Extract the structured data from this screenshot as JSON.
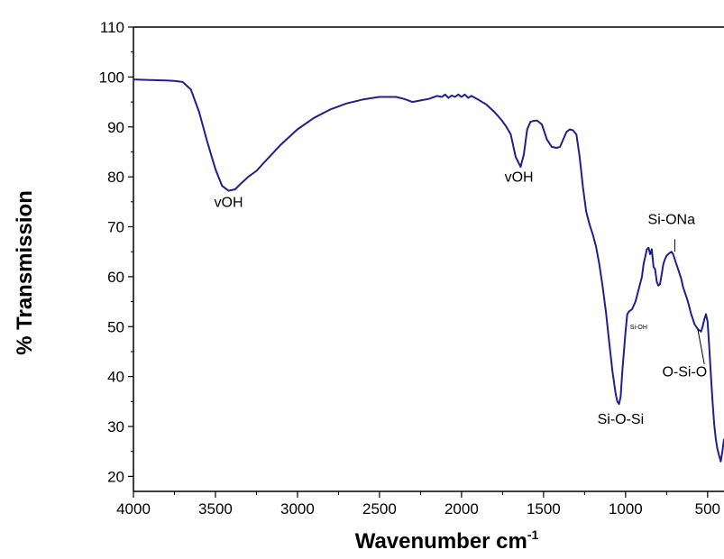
{
  "chart_data": {
    "type": "line",
    "xlabel": "Wavenumber cm",
    "xlabel_sup": "-1",
    "ylabel": "% Transmission",
    "xlim": [
      4000,
      400
    ],
    "ylim": [
      17,
      110
    ],
    "x_ticks": [
      4000,
      3500,
      3000,
      2500,
      2000,
      1500,
      1000,
      500
    ],
    "x_tick_labels": [
      "4000",
      "3500",
      "3000",
      "2500",
      "2000",
      "1500",
      "1000",
      "500"
    ],
    "y_ticks": [
      20,
      30,
      40,
      50,
      60,
      70,
      80,
      90,
      100,
      110
    ],
    "y_tick_labels": [
      "20",
      "30",
      "40",
      "50",
      "60",
      "70",
      "80",
      "90",
      "100",
      "110"
    ],
    "grid": false,
    "line_color": "#1f1f8f",
    "series": [
      {
        "x": [
          4000,
          3900,
          3800,
          3750,
          3700,
          3650,
          3600,
          3550,
          3500,
          3460,
          3420,
          3380,
          3350,
          3300,
          3250,
          3200,
          3100,
          3000,
          2900,
          2800,
          2700,
          2600,
          2500,
          2450,
          2400,
          2350,
          2300,
          2250,
          2200,
          2150,
          2120,
          2100,
          2080,
          2060,
          2040,
          2020,
          2000,
          1980,
          1960,
          1940,
          1900,
          1850,
          1800,
          1760,
          1730,
          1700,
          1670,
          1640,
          1620,
          1600,
          1580,
          1560,
          1540,
          1510,
          1480,
          1450,
          1420,
          1400,
          1380,
          1360,
          1340,
          1320,
          1300,
          1280,
          1260,
          1240,
          1220,
          1200,
          1180,
          1160,
          1140,
          1120,
          1100,
          1080,
          1060,
          1050,
          1040,
          1030,
          1020,
          1000,
          990,
          980,
          960,
          940,
          920,
          900,
          890,
          870,
          860,
          850,
          840,
          830,
          820,
          810,
          800,
          790,
          780,
          770,
          760,
          750,
          740,
          730,
          720,
          710,
          700,
          690,
          680,
          670,
          660,
          650,
          640,
          630,
          620,
          600,
          580,
          560,
          540,
          530,
          520,
          510,
          500,
          490,
          480,
          470,
          460,
          450,
          440,
          430,
          420,
          410,
          400
        ],
        "y": [
          99.5,
          99.4,
          99.3,
          99.2,
          99.0,
          97.5,
          93.0,
          87.0,
          81.5,
          78.2,
          77.2,
          77.5,
          78.5,
          80.0,
          81.2,
          83.0,
          86.5,
          89.5,
          91.8,
          93.5,
          94.7,
          95.5,
          96.0,
          96.0,
          96.0,
          95.6,
          95.0,
          95.3,
          95.6,
          96.2,
          96.0,
          96.5,
          95.8,
          96.3,
          96.0,
          96.5,
          96.0,
          96.5,
          95.8,
          96.2,
          95.5,
          94.5,
          93.0,
          91.5,
          90.2,
          88.5,
          84.0,
          82.0,
          84.5,
          89.5,
          91.0,
          91.2,
          91.3,
          90.5,
          87.5,
          86.0,
          85.8,
          86.0,
          87.5,
          89.0,
          89.5,
          89.3,
          88.5,
          84.0,
          78.0,
          73.0,
          70.5,
          68.5,
          66.0,
          62.5,
          58.0,
          53.0,
          47.0,
          41.0,
          36.5,
          35.0,
          34.5,
          36.0,
          41.0,
          49.0,
          52.5,
          53.0,
          53.5,
          55.0,
          57.5,
          60.0,
          62.5,
          65.5,
          65.8,
          64.5,
          65.5,
          62.0,
          61.5,
          59.0,
          58.2,
          58.5,
          60.5,
          62.5,
          63.5,
          64.2,
          64.5,
          64.8,
          65.0,
          64.5,
          63.5,
          62.5,
          61.5,
          60.5,
          59.5,
          58.0,
          57.0,
          56.0,
          55.0,
          52.5,
          50.5,
          49.5,
          49.0,
          50.0,
          51.5,
          52.5,
          51.0,
          46.0,
          40.5,
          35.0,
          30.5,
          27.5,
          25.5,
          24.2,
          23.0,
          25.0,
          27.5
        ]
      }
    ],
    "annotations": [
      {
        "text": "vOH",
        "x": 3420,
        "y": 74.0
      },
      {
        "text": "vOH",
        "x": 1650,
        "y": 79.0
      },
      {
        "text": "Si-ONa",
        "x": 720,
        "y": 70.5
      },
      {
        "text": "Si-OH",
        "x": 920,
        "y": 49.5,
        "small": true
      },
      {
        "text": "O-Si-O",
        "x": 640,
        "y": 40.0
      },
      {
        "text": "Si-O-Si",
        "x": 1030,
        "y": 30.5
      }
    ],
    "pointer_lines": [
      {
        "from_x": 700,
        "from_y": 65.0,
        "to_x": 700,
        "to_y": 67.5
      },
      {
        "from_x": 560,
        "from_y": 49.5,
        "to_x": 520,
        "to_y": 42.5
      }
    ]
  }
}
